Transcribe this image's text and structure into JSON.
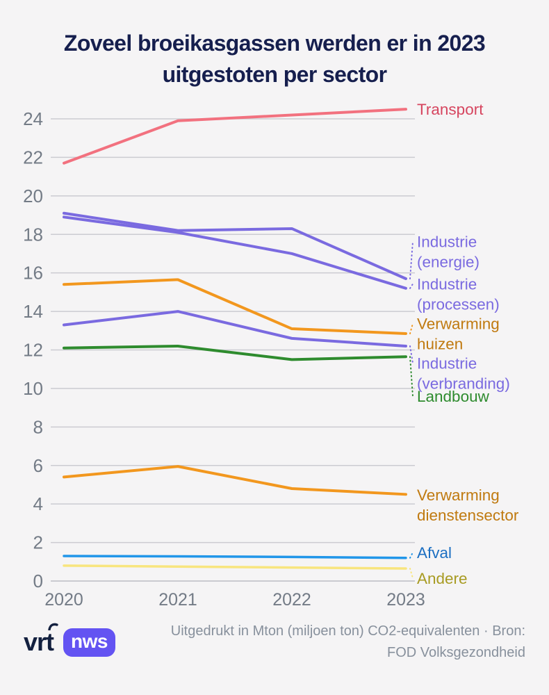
{
  "title": {
    "line1": "Zoveel broeikasgassen werden er in 2023",
    "line2": "uitgestoten per sector",
    "color": "#161F4E"
  },
  "chart_data": {
    "type": "line",
    "x": [
      "2020",
      "2021",
      "2022",
      "2023"
    ],
    "title": "Zoveel broeikasgassen werden er in 2023 uitgestoten per sector",
    "xlabel": "",
    "ylabel": "",
    "unit": "Mton CO2-equivalenten",
    "ylim": [
      0,
      24.6
    ],
    "y_ticks": [
      0,
      2,
      4,
      6,
      8,
      10,
      12,
      14,
      16,
      18,
      20,
      22,
      24
    ],
    "grid": true,
    "legend_position": "right-inline-labels",
    "colors": {
      "gridline": "#CBCBD1",
      "gridline_zero": "#BCBCC3",
      "tick_text": "#737B86"
    },
    "series": [
      {
        "name": "Transport",
        "values": [
          21.7,
          23.9,
          24.2,
          24.5
        ],
        "color": "#F2717F",
        "label_color": "#D6455F",
        "width": 4,
        "label_lines": [
          "Transport"
        ],
        "label_at": 24.5,
        "leader": false
      },
      {
        "name": "Industrie (energie)",
        "values": [
          19.1,
          18.2,
          18.3,
          15.7
        ],
        "color": "#7A6AE0",
        "label_color": "#7A6AE0",
        "width": 4,
        "label_lines": [
          "Industrie",
          "(energie)"
        ],
        "label_at": 17.1,
        "leader": true
      },
      {
        "name": "Industrie (processen)",
        "values": [
          18.9,
          18.1,
          17.0,
          15.2
        ],
        "color": "#7A6AE0",
        "label_color": "#7A6AE0",
        "width": 4,
        "label_lines": [
          "Industrie",
          "(processen)"
        ],
        "label_at": 14.9,
        "leader": true
      },
      {
        "name": "Verwarming huizen",
        "values": [
          15.4,
          15.65,
          13.1,
          12.85
        ],
        "color": "#F2971E",
        "label_color": "#C07A10",
        "width": 4,
        "label_lines": [
          "Verwarming",
          "huizen"
        ],
        "label_at": 12.85,
        "leader": true
      },
      {
        "name": "Industrie (verbranding)",
        "values": [
          13.3,
          14.0,
          12.6,
          12.2
        ],
        "color": "#7A6AE0",
        "label_color": "#7A6AE0",
        "width": 4,
        "label_lines": [
          "Industrie",
          "(verbranding)"
        ],
        "label_at": 10.8,
        "leader": true
      },
      {
        "name": "Landbouw",
        "values": [
          12.1,
          12.2,
          11.5,
          11.65
        ],
        "color": "#2E8B2E",
        "label_color": "#2E8B2E",
        "width": 4,
        "label_lines": [
          "Landbouw"
        ],
        "label_at": 9.6,
        "leader": true
      },
      {
        "name": "Verwarming dienstensector",
        "values": [
          5.4,
          5.95,
          4.8,
          4.5
        ],
        "color": "#F2971E",
        "label_color": "#C07A10",
        "width": 4,
        "label_lines": [
          "Verwarming",
          "dienstensector"
        ],
        "label_at": 3.95,
        "leader": false
      },
      {
        "name": "Afval",
        "values": [
          1.3,
          1.28,
          1.25,
          1.2
        ],
        "color": "#2196E9",
        "label_color": "#1C6FC2",
        "width": 3.5,
        "label_lines": [
          "Afval"
        ],
        "label_at": 1.48,
        "leader": true
      },
      {
        "name": "Andere",
        "values": [
          0.8,
          0.75,
          0.7,
          0.65
        ],
        "color": "#F8E57E",
        "label_color": "#A89B22",
        "width": 3.5,
        "label_lines": [
          "Andere"
        ],
        "label_at": 0.15,
        "leader": true
      }
    ]
  },
  "footer": {
    "logo_vrt": "vrt",
    "logo_nws": "nws",
    "caption_line1": "Uitgedrukt in Mton (miljoen ton) CO2-equivalenten · Bron:",
    "caption_line2": "FOD Volksgezondheid"
  }
}
